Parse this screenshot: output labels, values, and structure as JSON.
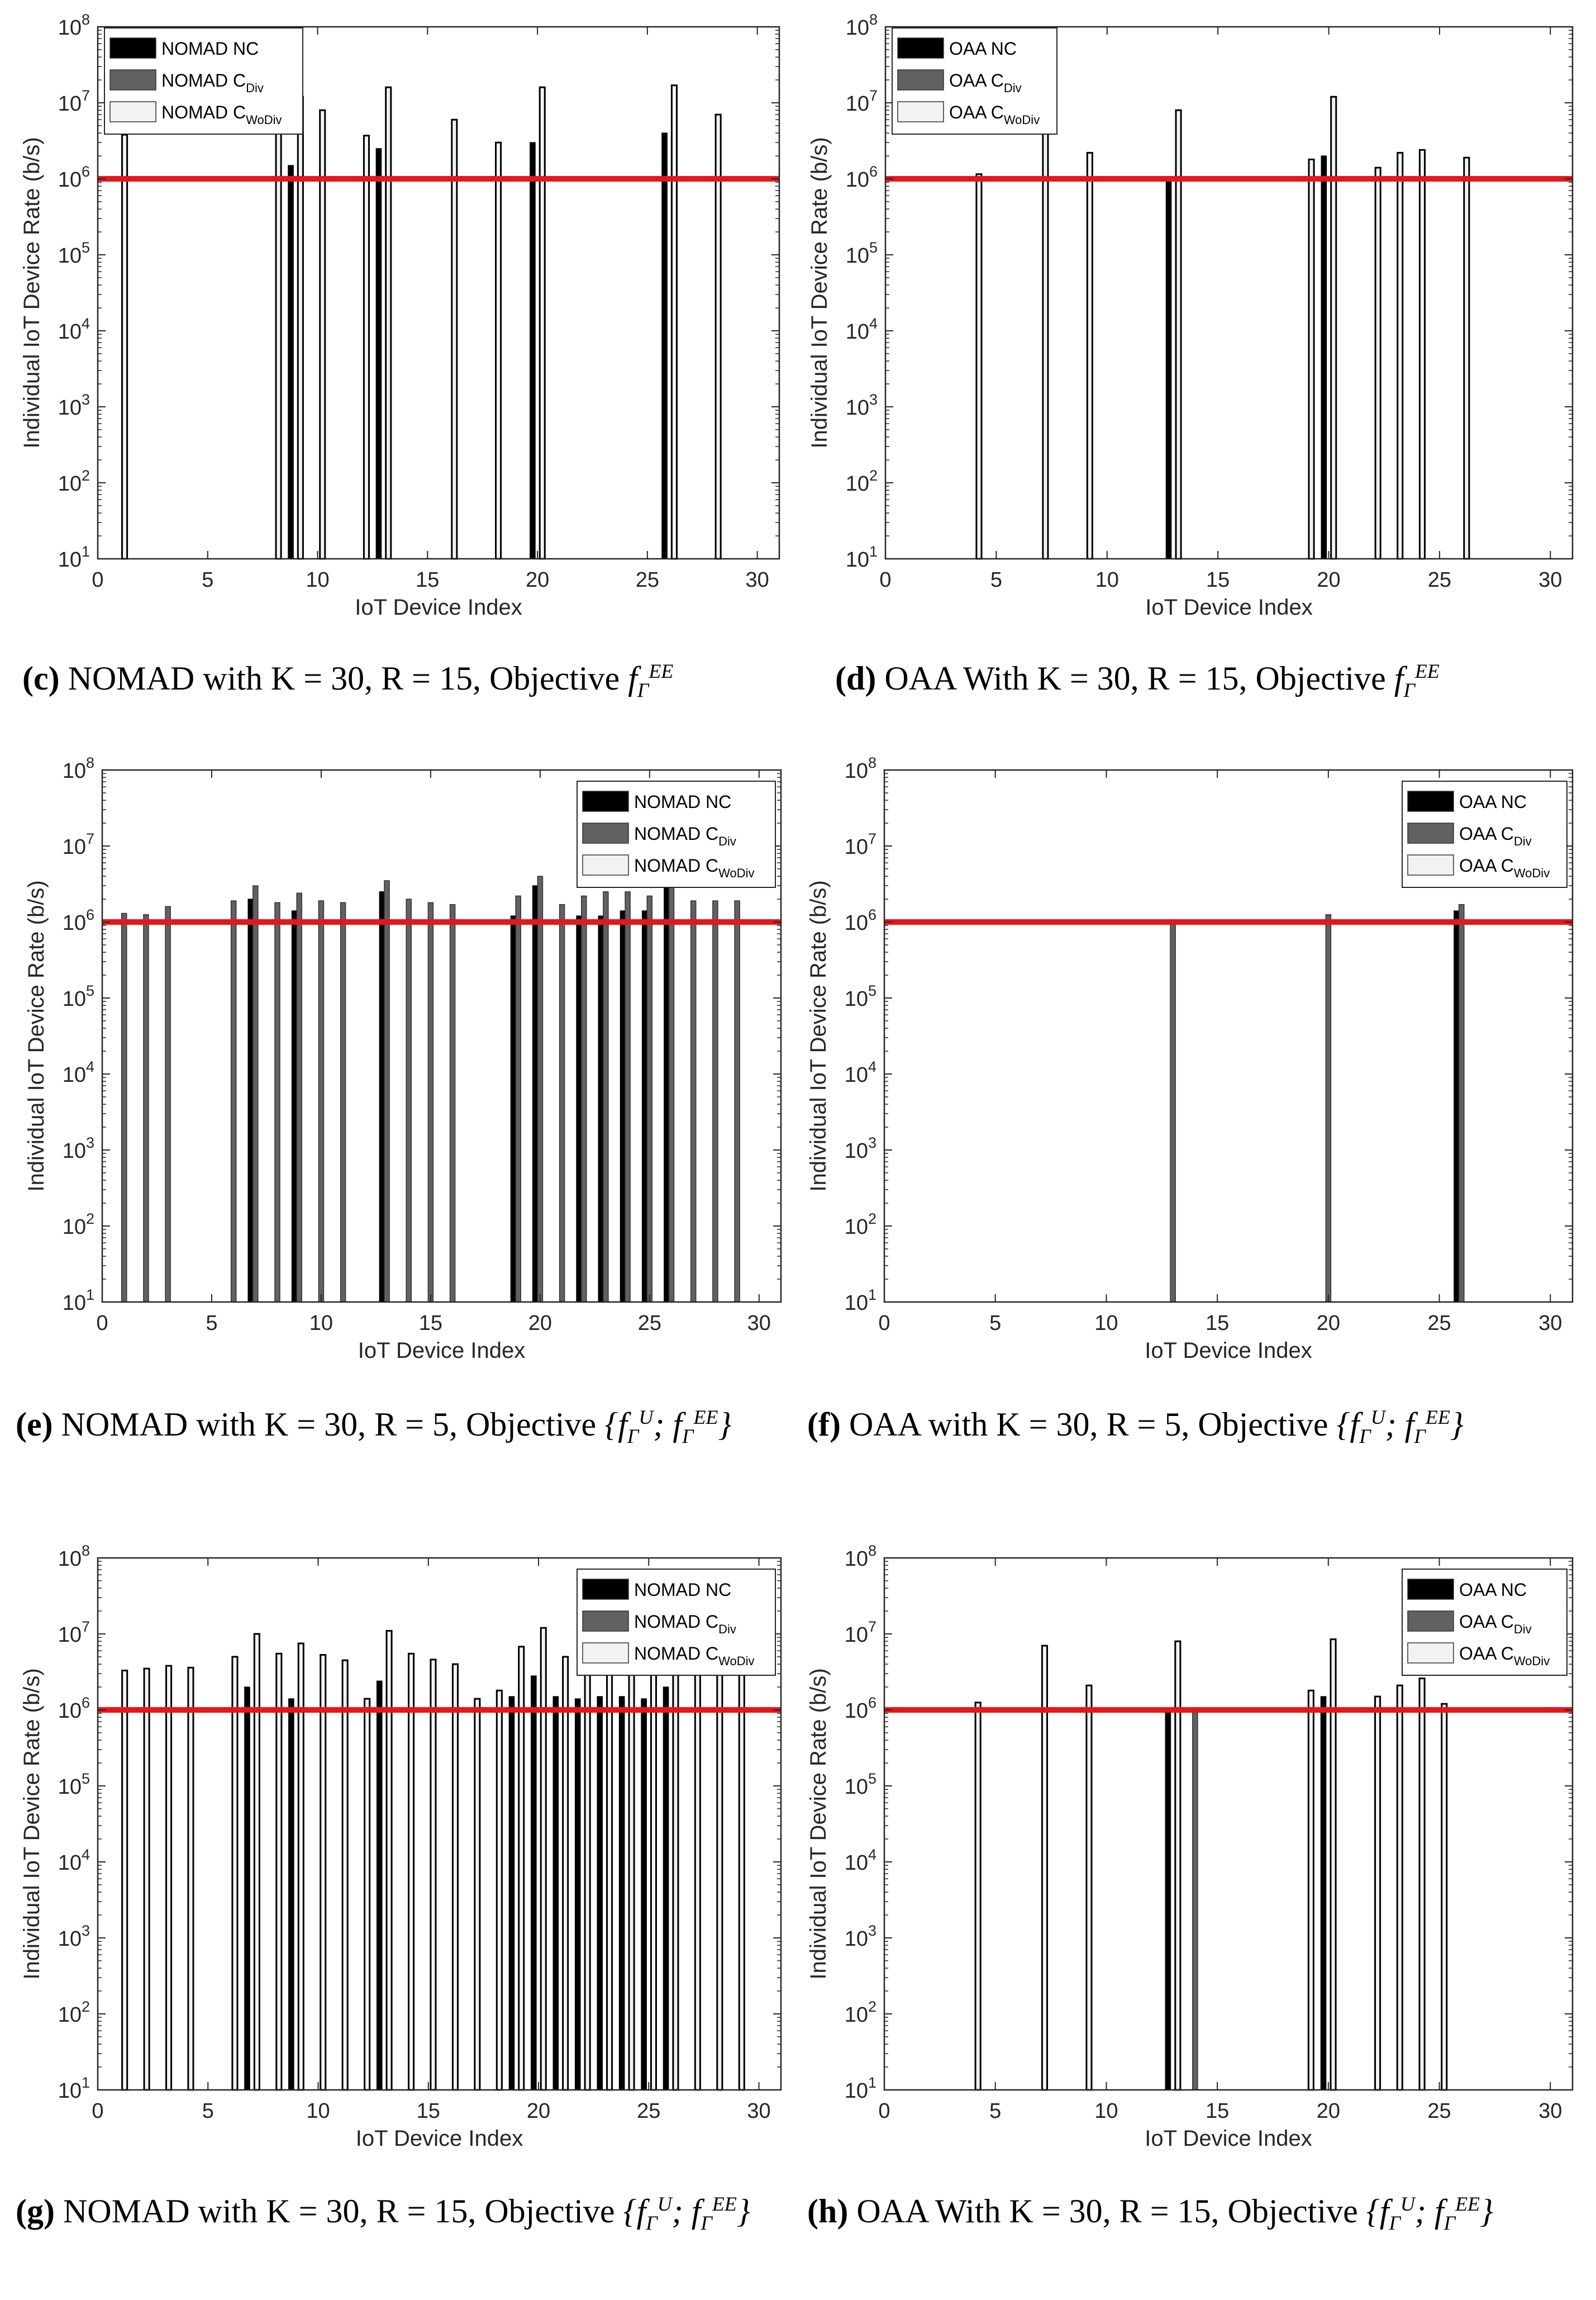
{
  "colors": {
    "nc": "#000000",
    "div": "#616161",
    "wodiv": "#f2f2f2",
    "threshold": "#e8161b",
    "axis": "#262626"
  },
  "charts": [
    {
      "subplot": "c",
      "caption": {
        "tag": "(c)",
        "text": "NOMAD with K = 30, R = 15, Objective",
        "math": "f_Γ^{EE}"
      },
      "chart_data": {
        "type": "bar",
        "yscale": "log",
        "xlabel": "IoT Device Index",
        "ylabel": "Individual IoT Device Rate (b/s)",
        "xlim": [
          0,
          31
        ],
        "ylim": [
          10,
          100000000
        ],
        "xticks": [
          "0",
          "5",
          "10",
          "15",
          "20",
          "25",
          "30"
        ],
        "yticks": [
          "10^1",
          "10^2",
          "10^3",
          "10^4",
          "10^5",
          "10^6",
          "10^7",
          "10^8"
        ],
        "legend": {
          "position": "top-left",
          "entries": [
            {
              "name": "NOMAD NC",
              "sub": ""
            },
            {
              "name": "NOMAD C",
              "sub": "Div"
            },
            {
              "name": "NOMAD C",
              "sub": "WoDiv"
            }
          ]
        },
        "threshold": 1000000,
        "series": [
          {
            "name": "NOMAD NC",
            "points": [
              [
                9,
                1500000
              ],
              [
                13,
                2500000
              ],
              [
                20,
                3000000
              ],
              [
                26,
                4000000
              ]
            ]
          },
          {
            "name": "NOMAD C_Div",
            "points": []
          },
          {
            "name": "NOMAD C_WoDiv",
            "points": [
              [
                1,
                3800000
              ],
              [
                8,
                10000000
              ],
              [
                9,
                12000000
              ],
              [
                10,
                8000000
              ],
              [
                12,
                3700000
              ],
              [
                13,
                16000000
              ],
              [
                16,
                6000000
              ],
              [
                18,
                3000000
              ],
              [
                20,
                16000000
              ],
              [
                26,
                17000000
              ],
              [
                28,
                7000000
              ]
            ]
          }
        ]
      }
    },
    {
      "subplot": "d",
      "caption": {
        "tag": "(d)",
        "text": "OAA With K = 30, R = 15, Objective",
        "math": "f_Γ^{EE}"
      },
      "chart_data": {
        "type": "bar",
        "yscale": "log",
        "xlabel": "IoT Device Index",
        "ylabel": "Individual IoT Device Rate (b/s)",
        "xlim": [
          0,
          31
        ],
        "ylim": [
          10,
          100000000
        ],
        "xticks": [
          "0",
          "5",
          "10",
          "15",
          "20",
          "25",
          "30"
        ],
        "yticks": [
          "10^1",
          "10^2",
          "10^3",
          "10^4",
          "10^5",
          "10^6",
          "10^7",
          "10^8"
        ],
        "legend": {
          "position": "top-left",
          "entries": [
            {
              "name": "OAA NC",
              "sub": ""
            },
            {
              "name": "OAA C",
              "sub": "Div"
            },
            {
              "name": "OAA C",
              "sub": "WoDiv"
            }
          ]
        },
        "threshold": 1000000,
        "series": [
          {
            "name": "OAA NC",
            "points": [
              [
                13,
                1000000
              ],
              [
                20,
                2000000
              ]
            ]
          },
          {
            "name": "OAA C_Div",
            "points": []
          },
          {
            "name": "OAA C_WoDiv",
            "points": [
              [
                4,
                1150000
              ],
              [
                7,
                4000000
              ],
              [
                9,
                2200000
              ],
              [
                13,
                8000000
              ],
              [
                19,
                1800000
              ],
              [
                20,
                12000000
              ],
              [
                22,
                1400000
              ],
              [
                23,
                2200000
              ],
              [
                24,
                2400000
              ],
              [
                26,
                1900000
              ]
            ]
          }
        ]
      }
    },
    {
      "subplot": "e",
      "caption": {
        "tag": "(e)",
        "text": "NOMAD with K = 30, R = 5, Objective",
        "math": "{f_Γ^U; f_Γ^{EE}}"
      },
      "chart_data": {
        "type": "bar",
        "yscale": "log",
        "xlabel": "IoT Device Index",
        "ylabel": "Individual IoT Device Rate (b/s)",
        "xlim": [
          0,
          31
        ],
        "ylim": [
          10,
          100000000
        ],
        "xticks": [
          "0",
          "5",
          "10",
          "15",
          "20",
          "25",
          "30"
        ],
        "yticks": [
          "10^1",
          "10^2",
          "10^3",
          "10^4",
          "10^5",
          "10^6",
          "10^7",
          "10^8"
        ],
        "legend": {
          "position": "top-right",
          "entries": [
            {
              "name": "NOMAD NC",
              "sub": ""
            },
            {
              "name": "NOMAD C",
              "sub": "Div"
            },
            {
              "name": "NOMAD C",
              "sub": "WoDiv"
            }
          ]
        },
        "threshold": 1000000,
        "series": [
          {
            "name": "NOMAD NC",
            "points": [
              [
                7,
                2000000
              ],
              [
                9,
                1400000
              ],
              [
                13,
                2500000
              ],
              [
                19,
                1200000
              ],
              [
                20,
                3000000
              ],
              [
                22,
                1200000
              ],
              [
                23,
                1200000
              ],
              [
                24,
                1400000
              ],
              [
                25,
                1400000
              ],
              [
                26,
                3500000
              ]
            ]
          },
          {
            "name": "NOMAD C_Div",
            "points": [
              [
                1,
                1300000
              ],
              [
                2,
                1250000
              ],
              [
                3,
                1600000
              ],
              [
                6,
                1900000
              ],
              [
                7,
                3000000
              ],
              [
                8,
                1800000
              ],
              [
                9,
                2400000
              ],
              [
                10,
                1900000
              ],
              [
                11,
                1800000
              ],
              [
                13,
                3500000
              ],
              [
                14,
                2000000
              ],
              [
                15,
                1800000
              ],
              [
                16,
                1700000
              ],
              [
                19,
                2200000
              ],
              [
                20,
                4000000
              ],
              [
                21,
                1700000
              ],
              [
                22,
                2200000
              ],
              [
                23,
                2500000
              ],
              [
                24,
                2500000
              ],
              [
                25,
                2200000
              ],
              [
                26,
                5000000
              ],
              [
                27,
                1900000
              ],
              [
                28,
                1900000
              ],
              [
                29,
                1900000
              ]
            ]
          },
          {
            "name": "NOMAD C_WoDiv",
            "points": []
          }
        ]
      }
    },
    {
      "subplot": "f",
      "caption": {
        "tag": "(f)",
        "text": "OAA with K = 30, R = 5, Objective",
        "math": "{f_Γ^U; f_Γ^{EE}}"
      },
      "chart_data": {
        "type": "bar",
        "yscale": "log",
        "xlabel": "IoT Device Index",
        "ylabel": "Individual IoT Device Rate (b/s)",
        "xlim": [
          0,
          31
        ],
        "ylim": [
          10,
          100000000
        ],
        "xticks": [
          "0",
          "5",
          "10",
          "15",
          "20",
          "25",
          "30"
        ],
        "yticks": [
          "10^1",
          "10^2",
          "10^3",
          "10^4",
          "10^5",
          "10^6",
          "10^7",
          "10^8"
        ],
        "legend": {
          "position": "top-right",
          "entries": [
            {
              "name": "OAA NC",
              "sub": ""
            },
            {
              "name": "OAA C",
              "sub": "Div"
            },
            {
              "name": "OAA C",
              "sub": "WoDiv"
            }
          ]
        },
        "threshold": 1000000,
        "series": [
          {
            "name": "OAA NC",
            "points": [
              [
                26,
                1400000
              ]
            ]
          },
          {
            "name": "OAA C_Div",
            "points": [
              [
                13,
                1050000
              ],
              [
                20,
                1250000
              ],
              [
                26,
                1700000
              ]
            ]
          },
          {
            "name": "OAA C_WoDiv",
            "points": []
          }
        ]
      }
    },
    {
      "subplot": "g",
      "caption": {
        "tag": "(g)",
        "text": "NOMAD with K = 30, R = 15, Objective",
        "math": "{f_Γ^U; f_Γ^{EE}}"
      },
      "chart_data": {
        "type": "bar",
        "yscale": "log",
        "xlabel": "IoT Device Index",
        "ylabel": "Individual IoT Device Rate (b/s)",
        "xlim": [
          0,
          31
        ],
        "ylim": [
          10,
          100000000
        ],
        "xticks": [
          "0",
          "5",
          "10",
          "15",
          "20",
          "25",
          "30"
        ],
        "yticks": [
          "10^1",
          "10^2",
          "10^3",
          "10^4",
          "10^5",
          "10^6",
          "10^7",
          "10^8"
        ],
        "legend": {
          "position": "top-right",
          "entries": [
            {
              "name": "NOMAD NC",
              "sub": ""
            },
            {
              "name": "NOMAD C",
              "sub": "Div"
            },
            {
              "name": "NOMAD C",
              "sub": "WoDiv"
            }
          ]
        },
        "threshold": 1000000,
        "series": [
          {
            "name": "NOMAD NC",
            "points": [
              [
                7,
                2000000
              ],
              [
                9,
                1400000
              ],
              [
                13,
                2400000
              ],
              [
                19,
                1500000
              ],
              [
                20,
                2800000
              ],
              [
                21,
                1500000
              ],
              [
                22,
                1400000
              ],
              [
                23,
                1500000
              ],
              [
                24,
                1500000
              ],
              [
                25,
                1400000
              ],
              [
                26,
                2000000
              ]
            ]
          },
          {
            "name": "NOMAD C_Div",
            "points": []
          },
          {
            "name": "NOMAD C_WoDiv",
            "points": [
              [
                1,
                3300000
              ],
              [
                2,
                3500000
              ],
              [
                3,
                3800000
              ],
              [
                4,
                3600000
              ],
              [
                6,
                5000000
              ],
              [
                7,
                10000000
              ],
              [
                8,
                5500000
              ],
              [
                9,
                7500000
              ],
              [
                10,
                5300000
              ],
              [
                11,
                4500000
              ],
              [
                12,
                1400000
              ],
              [
                13,
                11000000
              ],
              [
                14,
                5500000
              ],
              [
                15,
                4600000
              ],
              [
                16,
                4000000
              ],
              [
                17,
                1400000
              ],
              [
                18,
                1800000
              ],
              [
                19,
                6800000
              ],
              [
                20,
                12000000
              ],
              [
                21,
                5000000
              ],
              [
                22,
                9000000
              ],
              [
                23,
                8000000
              ],
              [
                24,
                9000000
              ],
              [
                25,
                9000000
              ],
              [
                26,
                10000000
              ],
              [
                27,
                8000000
              ],
              [
                28,
                7000000
              ],
              [
                29,
                6000000
              ]
            ]
          }
        ]
      }
    },
    {
      "subplot": "h",
      "caption": {
        "tag": "(h)",
        "text": "OAA With K = 30, R = 15, Objective",
        "math": "{f_Γ^U; f_Γ^{EE}}"
      },
      "chart_data": {
        "type": "bar",
        "yscale": "log",
        "xlabel": "IoT Device Index",
        "ylabel": "Individual IoT Device Rate (b/s)",
        "xlim": [
          0,
          31
        ],
        "ylim": [
          10,
          100000000
        ],
        "xticks": [
          "0",
          "5",
          "10",
          "15",
          "20",
          "25",
          "30"
        ],
        "yticks": [
          "10^1",
          "10^2",
          "10^3",
          "10^4",
          "10^5",
          "10^6",
          "10^7",
          "10^8"
        ],
        "legend": {
          "position": "top-right",
          "entries": [
            {
              "name": "OAA NC",
              "sub": ""
            },
            {
              "name": "OAA C",
              "sub": "Div"
            },
            {
              "name": "OAA C",
              "sub": "WoDiv"
            }
          ]
        },
        "threshold": 1000000,
        "series": [
          {
            "name": "OAA NC",
            "points": [
              [
                13,
                1000000
              ],
              [
                20,
                1500000
              ]
            ]
          },
          {
            "name": "OAA C_Div",
            "points": [
              [
                14,
                1000000
              ]
            ]
          },
          {
            "name": "OAA C_WoDiv",
            "points": [
              [
                4,
                1250000
              ],
              [
                7,
                7000000
              ],
              [
                9,
                2100000
              ],
              [
                13,
                8000000
              ],
              [
                19,
                1800000
              ],
              [
                20,
                8500000
              ],
              [
                22,
                1500000
              ],
              [
                23,
                2100000
              ],
              [
                24,
                2600000
              ],
              [
                25,
                1200000
              ]
            ]
          }
        ]
      }
    }
  ]
}
